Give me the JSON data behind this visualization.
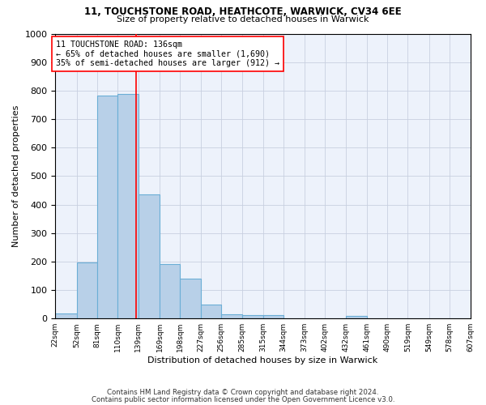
{
  "title1": "11, TOUCHSTONE ROAD, HEATHCOTE, WARWICK, CV34 6EE",
  "title2": "Size of property relative to detached houses in Warwick",
  "xlabel": "Distribution of detached houses by size in Warwick",
  "ylabel": "Number of detached properties",
  "bar_color": "#b8d0e8",
  "bar_edge_color": "#6baed6",
  "grid_color": "#c8d0e0",
  "background_color": "#edf2fb",
  "vline_color": "red",
  "vline_x": 136,
  "annotation_text_line1": "11 TOUCHSTONE ROAD: 136sqm",
  "annotation_text_line2": "← 65% of detached houses are smaller (1,690)",
  "annotation_text_line3": "35% of semi-detached houses are larger (912) →",
  "footer1": "Contains HM Land Registry data © Crown copyright and database right 2024.",
  "footer2": "Contains public sector information licensed under the Open Government Licence v3.0.",
  "bins": [
    22,
    52,
    81,
    110,
    139,
    169,
    198,
    227,
    256,
    285,
    315,
    344,
    373,
    402,
    432,
    461,
    490,
    519,
    549,
    578,
    607
  ],
  "counts": [
    18,
    196,
    782,
    789,
    437,
    192,
    140,
    49,
    16,
    12,
    12,
    0,
    0,
    0,
    8,
    0,
    0,
    0,
    0,
    0
  ],
  "ylim": [
    0,
    1000
  ],
  "yticks": [
    0,
    100,
    200,
    300,
    400,
    500,
    600,
    700,
    800,
    900,
    1000
  ]
}
